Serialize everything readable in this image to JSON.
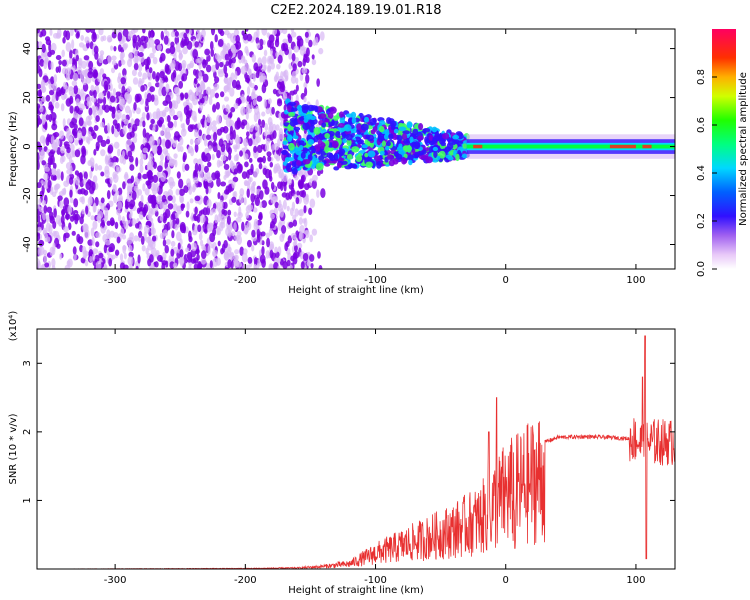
{
  "title": "C2E2.2024.189.19.01.R18",
  "chart_data": [
    {
      "type": "heatmap",
      "xlabel": "Height of straight line (km)",
      "ylabel": "Frequency (Hz)",
      "xlim": [
        -360,
        130
      ],
      "ylim": [
        -50,
        48
      ],
      "xticks": [
        -300,
        -200,
        -100,
        0,
        100
      ],
      "yticks": [
        -40,
        -20,
        0,
        20,
        40
      ],
      "colorbar": {
        "label": "Normalized spectral amplitude",
        "range": [
          0,
          1
        ],
        "ticks": [
          "0.0",
          "0.2",
          "0.4",
          "0.6",
          "0.8"
        ],
        "colormap": "rainbow"
      },
      "colors": {
        "noise_dark": "#7a00e0",
        "noise_light": "#d9b8f5",
        "band_core": "#00ff40",
        "band_peak": "#ff2020"
      },
      "regions": [
        {
          "x_range": [
            -360,
            -150
          ],
          "description_level": 0.1,
          "freq_spread": [
            -50,
            48
          ]
        },
        {
          "x_range": [
            -170,
            -30
          ],
          "description_level": 0.4,
          "freq_spread": [
            -15,
            15
          ]
        },
        {
          "x_range": [
            -30,
            130
          ],
          "description_level": 0.55,
          "freq_spread": [
            -3,
            3
          ]
        }
      ]
    },
    {
      "type": "line",
      "xlabel": "Height of straight line (km)",
      "ylabel": "SNR (10 * v/v)",
      "y_multiplier": "(x10⁴)",
      "xlim": [
        -360,
        130
      ],
      "ylim": [
        0,
        3.5
      ],
      "xticks": [
        -300,
        -200,
        -100,
        0,
        100
      ],
      "yticks": [
        1,
        2,
        3
      ],
      "color": "#e83030",
      "series_envelope": [
        [
          -360,
          0.0
        ],
        [
          -200,
          0.01
        ],
        [
          -160,
          0.02
        ],
        [
          -140,
          0.05
        ],
        [
          -120,
          0.1
        ],
        [
          -100,
          0.3
        ],
        [
          -80,
          0.45
        ],
        [
          -60,
          0.6
        ],
        [
          -40,
          0.75
        ],
        [
          -20,
          0.95
        ],
        [
          -10,
          1.2
        ],
        [
          0,
          1.45
        ],
        [
          10,
          1.55
        ],
        [
          20,
          1.7
        ],
        [
          30,
          1.85
        ],
        [
          40,
          1.92
        ],
        [
          60,
          1.93
        ],
        [
          80,
          1.92
        ],
        [
          95,
          1.9
        ],
        [
          100,
          1.9
        ],
        [
          105,
          1.8
        ],
        [
          110,
          1.85
        ],
        [
          130,
          1.85
        ]
      ],
      "spikes": [
        {
          "x": -7,
          "y": 2.5
        },
        {
          "x": -13,
          "y": 2.0
        },
        {
          "x": 7,
          "y": 0.3
        },
        {
          "x": 105,
          "y": 2.8
        },
        {
          "x": 107,
          "y": 3.4
        },
        {
          "x": 108,
          "y": 0.15
        }
      ]
    }
  ]
}
